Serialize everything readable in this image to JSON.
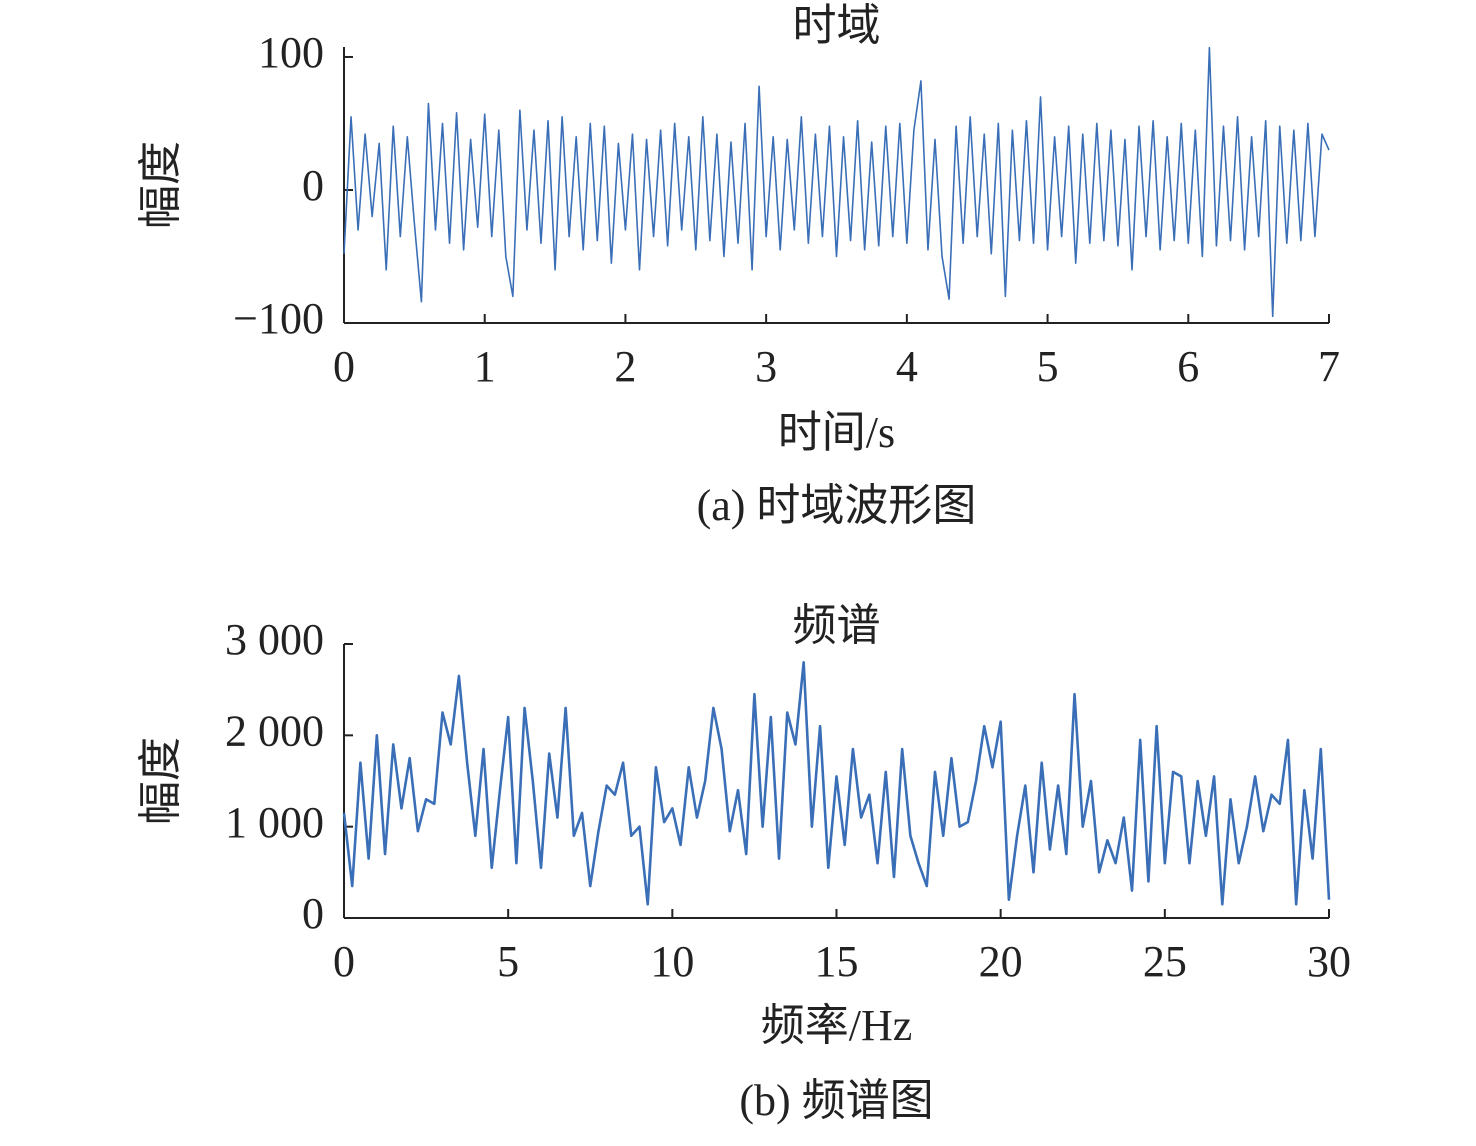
{
  "chart_data": [
    {
      "type": "line",
      "title": "时域",
      "xlabel": "时间/s",
      "ylabel": "幅度",
      "caption": "(a) 时域波形图",
      "color": "#3a6fb8",
      "xlim": [
        0,
        7
      ],
      "xticks": [
        0,
        1,
        2,
        3,
        4,
        5,
        6,
        7
      ],
      "ylim": [
        -100,
        107.5
      ],
      "yticks": [
        {
          "value": -100,
          "label": "−100"
        },
        0,
        100
      ],
      "x": [
        0,
        0.05,
        0.1,
        0.15,
        0.2,
        0.25,
        0.3,
        0.35,
        0.4,
        0.45,
        0.5,
        0.55,
        0.6,
        0.65,
        0.7,
        0.75,
        0.8,
        0.85,
        0.9,
        0.95,
        1,
        1.05,
        1.1,
        1.15,
        1.2,
        1.25,
        1.3,
        1.35,
        1.4,
        1.45,
        1.5,
        1.55,
        1.6,
        1.65,
        1.7,
        1.75,
        1.8,
        1.85,
        1.9,
        1.95,
        2,
        2.05,
        2.1,
        2.15,
        2.2,
        2.25,
        2.3,
        2.35,
        2.4,
        2.45,
        2.5,
        2.55,
        2.6,
        2.65,
        2.7,
        2.75,
        2.8,
        2.85,
        2.9,
        2.95,
        3,
        3.05,
        3.1,
        3.15,
        3.2,
        3.25,
        3.3,
        3.35,
        3.4,
        3.45,
        3.5,
        3.55,
        3.6,
        3.65,
        3.7,
        3.75,
        3.8,
        3.85,
        3.9,
        3.95,
        4,
        4.05,
        4.1,
        4.15,
        4.2,
        4.25,
        4.3,
        4.35,
        4.4,
        4.45,
        4.5,
        4.55,
        4.6,
        4.65,
        4.7,
        4.75,
        4.8,
        4.85,
        4.9,
        4.95,
        5,
        5.05,
        5.1,
        5.15,
        5.2,
        5.25,
        5.3,
        5.35,
        5.4,
        5.45,
        5.5,
        5.55,
        5.6,
        5.65,
        5.7,
        5.75,
        5.8,
        5.85,
        5.9,
        5.95,
        6,
        6.05,
        6.1,
        6.15,
        6.2,
        6.25,
        6.3,
        6.35,
        6.4,
        6.45,
        6.5,
        6.55,
        6.6,
        6.65,
        6.7,
        6.75,
        6.8,
        6.85,
        6.9,
        6.95,
        7
      ],
      "values": [
        -48,
        55,
        -30,
        42,
        -20,
        35,
        -60,
        48,
        -35,
        40,
        -25,
        -84,
        65,
        -30,
        50,
        -40,
        58,
        -45,
        38,
        -28,
        57,
        -35,
        45,
        -50,
        -80,
        60,
        -30,
        45,
        -40,
        52,
        -60,
        55,
        -35,
        40,
        -45,
        50,
        -38,
        48,
        -55,
        35,
        -30,
        42,
        -60,
        38,
        -35,
        45,
        -42,
        50,
        -30,
        40,
        -45,
        55,
        -38,
        42,
        -50,
        36,
        -40,
        50,
        -60,
        78,
        -35,
        40,
        -45,
        38,
        -30,
        55,
        -40,
        42,
        -35,
        48,
        -50,
        40,
        -38,
        52,
        -45,
        36,
        -42,
        48,
        -35,
        50,
        -40,
        45,
        82,
        -45,
        38,
        -50,
        -82,
        48,
        -40,
        55,
        -35,
        42,
        -48,
        50,
        -80,
        45,
        -38,
        52,
        -40,
        70,
        -45,
        40,
        -35,
        48,
        -55,
        42,
        -40,
        50,
        -38,
        45,
        -42,
        38,
        -60,
        48,
        -35,
        52,
        -45,
        40,
        -38,
        50,
        -40,
        45,
        -50,
        107,
        -42,
        48,
        -38,
        55,
        -45,
        40,
        -35,
        52,
        -95,
        48,
        -40,
        45,
        -38,
        50,
        -35,
        42,
        30
      ]
    },
    {
      "type": "line",
      "title": "频谱",
      "xlabel": "频率/Hz",
      "ylabel": "幅度",
      "caption": "(b) 频谱图",
      "color": "#3a6fb8",
      "xlim": [
        0,
        30
      ],
      "xticks": [
        0,
        5,
        10,
        15,
        20,
        25,
        30
      ],
      "ylim": [
        0,
        3000
      ],
      "yticks": [
        0,
        {
          "value": 1000,
          "label": "1 000"
        },
        {
          "value": 2000,
          "label": "2 000"
        },
        {
          "value": 3000,
          "label": "3 000"
        }
      ],
      "x": [
        0,
        0.25,
        0.5,
        0.75,
        1,
        1.25,
        1.5,
        1.75,
        2,
        2.25,
        2.5,
        2.75,
        3,
        3.25,
        3.5,
        3.75,
        4,
        4.25,
        4.5,
        4.75,
        5,
        5.25,
        5.5,
        5.75,
        6,
        6.25,
        6.5,
        6.75,
        7,
        7.25,
        7.5,
        7.75,
        8,
        8.25,
        8.5,
        8.75,
        9,
        9.25,
        9.5,
        9.75,
        10,
        10.25,
        10.5,
        10.75,
        11,
        11.25,
        11.5,
        11.75,
        12,
        12.25,
        12.5,
        12.75,
        13,
        13.25,
        13.5,
        13.75,
        14,
        14.25,
        14.5,
        14.75,
        15,
        15.25,
        15.5,
        15.75,
        16,
        16.25,
        16.5,
        16.75,
        17,
        17.25,
        17.5,
        17.75,
        18,
        18.25,
        18.5,
        18.75,
        19,
        19.25,
        19.5,
        19.75,
        20,
        20.25,
        20.5,
        20.75,
        21,
        21.25,
        21.5,
        21.75,
        22,
        22.25,
        22.5,
        22.75,
        23,
        23.25,
        23.5,
        23.75,
        24,
        24.25,
        24.5,
        24.75,
        25,
        25.25,
        25.5,
        25.75,
        26,
        26.25,
        26.5,
        26.75,
        27,
        27.25,
        27.5,
        27.75,
        28,
        28.25,
        28.5,
        28.75,
        29,
        29.25,
        29.5,
        29.75,
        30
      ],
      "values": [
        1150,
        350,
        1700,
        650,
        2000,
        700,
        1900,
        1200,
        1750,
        950,
        1300,
        1250,
        2250,
        1900,
        2650,
        1700,
        900,
        1850,
        550,
        1400,
        2200,
        600,
        2300,
        1500,
        550,
        1800,
        1100,
        2300,
        900,
        1150,
        350,
        950,
        1450,
        1350,
        1700,
        900,
        1000,
        150,
        1650,
        1050,
        1200,
        800,
        1650,
        1100,
        1500,
        2300,
        1850,
        950,
        1400,
        700,
        2450,
        1000,
        2200,
        650,
        2250,
        1900,
        2800,
        1000,
        2100,
        550,
        1550,
        800,
        1850,
        1100,
        1350,
        600,
        1600,
        450,
        1850,
        900,
        600,
        350,
        1600,
        900,
        1750,
        1000,
        1050,
        1500,
        2100,
        1650,
        2150,
        200,
        900,
        1450,
        500,
        1700,
        750,
        1450,
        700,
        2450,
        1000,
        1500,
        500,
        850,
        600,
        1100,
        300,
        1950,
        400,
        2100,
        600,
        1600,
        1550,
        600,
        1500,
        900,
        1550,
        150,
        1300,
        600,
        1000,
        1550,
        950,
        1350,
        1250,
        1950,
        150,
        1400,
        650,
        1850,
        200
      ]
    }
  ]
}
